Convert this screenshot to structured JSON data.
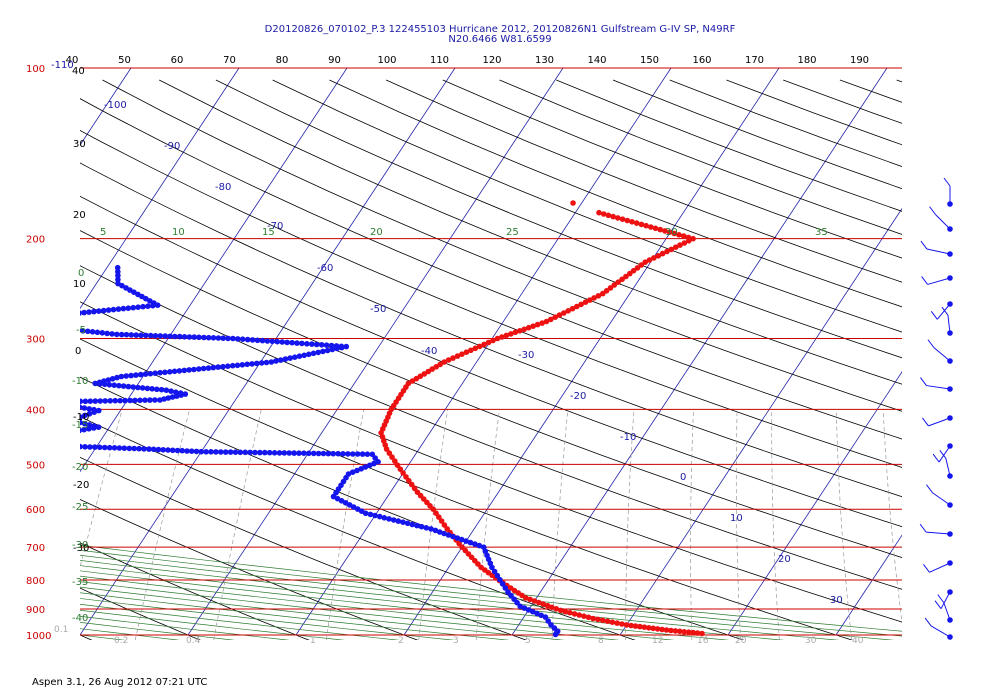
{
  "header": {
    "title_line1": "D20120826_070102_P.3 122455103 Hurricane 2012, 20120826N1 Gulfstream G-IV SP, N49RF",
    "title_line2": "N20.6466 W81.6599"
  },
  "footer": {
    "text": "Aspen 3.1, 26 Aug 2012  07:21 UTC"
  },
  "colors": {
    "temperature": "#ee1111",
    "dewpoint": "#1515ee",
    "isobar": "#cc0000",
    "isotherm": "#2222aa",
    "theta": "#000000",
    "theta_e": "#2e7d32",
    "mixing_ratio": "#999999"
  },
  "chart_data": {
    "type": "scatter",
    "title": "D20120826_070102_P.3 122455103 Hurricane 2012, 20120826N1 Gulfstream G-IV SP, N49RF",
    "subtitle": "N20.6466 W81.6599",
    "pressure_labels": [
      "100",
      "200",
      "300",
      "400",
      "500",
      "600",
      "700",
      "800",
      "900",
      "1000"
    ],
    "top_axis_labels": [
      "40",
      "50",
      "60",
      "70",
      "80",
      "90",
      "100",
      "110",
      "120",
      "130",
      "140",
      "150",
      "160",
      "170",
      "180",
      "190"
    ],
    "left_axis_labels": [
      "-110",
      "40",
      "30",
      "20",
      "10",
      "0",
      "-10",
      "-20",
      "-30"
    ],
    "isotherm_labels": [
      "-100",
      "-90",
      "-80",
      "-70",
      "-60",
      "-50",
      "-40",
      "-30",
      "-20",
      "-10",
      "0",
      "10",
      "20",
      "30"
    ],
    "theta_e_labels": [
      "5",
      "10",
      "15",
      "20",
      "25",
      "30",
      "35",
      "0",
      "-5",
      "-10",
      "-15",
      "-20",
      "-25",
      "-30",
      "-35",
      "-40"
    ],
    "mixing_ratio_labels": [
      "0.1",
      "0.2",
      "0.4",
      "1",
      "2",
      "3",
      "5",
      "8",
      "12",
      "16",
      "20",
      "30",
      "40"
    ],
    "series": [
      {
        "name": "Temperature",
        "points": [
          [
            -17.8,
            180
          ],
          [
            -7.5,
            200
          ],
          [
            -10.5,
            220
          ],
          [
            -12.5,
            250
          ],
          [
            -16,
            280
          ],
          [
            -19.5,
            300
          ],
          [
            -23,
            330
          ],
          [
            -25,
            360
          ],
          [
            -25,
            400
          ],
          [
            -24.5,
            440
          ],
          [
            -23,
            470
          ],
          [
            -20.5,
            510
          ],
          [
            -17.5,
            560
          ],
          [
            -15,
            600
          ],
          [
            -12.5,
            650
          ],
          [
            -10,
            700
          ],
          [
            -7,
            760
          ],
          [
            -4,
            810
          ],
          [
            -1,
            860
          ],
          [
            3,
            905
          ],
          [
            6.5,
            935
          ],
          [
            10,
            960
          ],
          [
            14,
            980
          ],
          [
            17.5,
            994
          ]
        ]
      },
      {
        "name": "Dewpoint",
        "points": [
          [
            -59,
            225
          ],
          [
            -58,
            240
          ],
          [
            -53,
            262
          ],
          [
            -67,
            280
          ],
          [
            -55,
            295
          ],
          [
            -44,
            300
          ],
          [
            -33,
            310
          ],
          [
            -39,
            330
          ],
          [
            -52,
            350
          ],
          [
            -54,
            360
          ],
          [
            -47,
            370
          ],
          [
            -45,
            376
          ],
          [
            -47,
            385
          ],
          [
            -57,
            388
          ],
          [
            -52,
            402
          ],
          [
            -54,
            418
          ],
          [
            -51,
            430
          ],
          [
            -59,
            460
          ],
          [
            -45,
            470
          ],
          [
            -40,
            475
          ],
          [
            -24,
            480
          ],
          [
            -23,
            495
          ],
          [
            -25,
            520
          ],
          [
            -25,
            570
          ],
          [
            -21,
            610
          ],
          [
            -14,
            650
          ],
          [
            -8,
            700
          ],
          [
            -6,
            760
          ],
          [
            -3,
            840
          ],
          [
            -1,
            890
          ],
          [
            2,
            930
          ],
          [
            3,
            960
          ],
          [
            4,
            985
          ],
          [
            4,
            998
          ]
        ]
      }
    ],
    "axes": {
      "pressure_range": [
        1000,
        100
      ],
      "y_scale": "log",
      "temperature_range_at_1000": [
        -40,
        45
      ]
    },
    "grid": true,
    "wind_barbs": "right"
  }
}
